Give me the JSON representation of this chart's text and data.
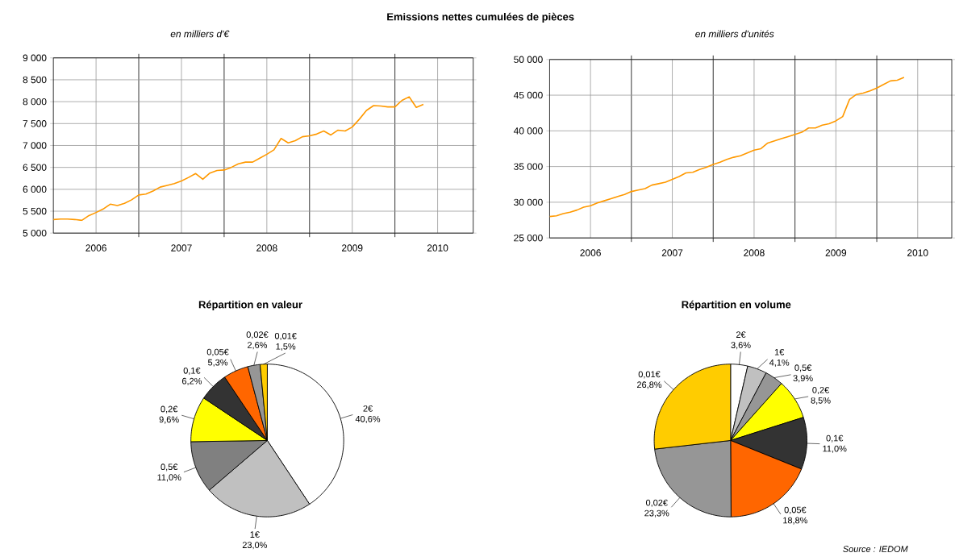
{
  "chart_data": [
    {
      "type": "line",
      "title": "Emissions nettes cumulées de pièces",
      "subtitle": "en milliers d'€",
      "grid": true,
      "x": [
        "2006-01",
        "2006-02",
        "2006-03",
        "2006-04",
        "2006-05",
        "2006-06",
        "2006-07",
        "2006-08",
        "2006-09",
        "2006-10",
        "2006-11",
        "2006-12",
        "2007-01",
        "2007-02",
        "2007-03",
        "2007-04",
        "2007-05",
        "2007-06",
        "2007-07",
        "2007-08",
        "2007-09",
        "2007-10",
        "2007-11",
        "2007-12",
        "2008-01",
        "2008-02",
        "2008-03",
        "2008-04",
        "2008-05",
        "2008-06",
        "2008-07",
        "2008-08",
        "2008-09",
        "2008-10",
        "2008-11",
        "2008-12",
        "2009-01",
        "2009-02",
        "2009-03",
        "2009-04",
        "2009-05",
        "2009-06",
        "2009-07",
        "2009-08",
        "2009-09",
        "2009-10",
        "2009-11",
        "2009-12",
        "2010-01",
        "2010-02",
        "2010-03",
        "2010-04",
        "2010-05"
      ],
      "series": [
        {
          "color": "#ff9900",
          "values": [
            5310,
            5320,
            5320,
            5310,
            5290,
            5400,
            5470,
            5550,
            5660,
            5630,
            5680,
            5760,
            5870,
            5890,
            5960,
            6050,
            6090,
            6130,
            6190,
            6270,
            6360,
            6230,
            6370,
            6430,
            6440,
            6500,
            6580,
            6620,
            6620,
            6710,
            6800,
            6900,
            7160,
            7060,
            7110,
            7200,
            7220,
            7260,
            7330,
            7240,
            7350,
            7330,
            7420,
            7600,
            7800,
            7910,
            7900,
            7880,
            7880,
            8030,
            8110,
            7870,
            7940
          ]
        }
      ],
      "xlim": [
        "2006-01",
        "2010-12"
      ],
      "xticks": [
        {
          "value": "2006-07",
          "label": "2006"
        },
        {
          "value": "2007-01",
          "label": null
        },
        {
          "value": "2007-07",
          "label": "2007"
        },
        {
          "value": "2008-01",
          "label": null
        },
        {
          "value": "2008-07",
          "label": "2008"
        },
        {
          "value": "2009-01",
          "label": null
        },
        {
          "value": "2009-07",
          "label": "2009"
        },
        {
          "value": "2010-01",
          "label": null
        },
        {
          "value": "2010-07",
          "label": "2010"
        }
      ],
      "ylim": [
        5000,
        9000
      ],
      "yticks": [
        {
          "value": 5000,
          "label": "5 000"
        },
        {
          "value": 5500,
          "label": "5 500"
        },
        {
          "value": 6000,
          "label": "6 000"
        },
        {
          "value": 6500,
          "label": "6 500"
        },
        {
          "value": 7000,
          "label": "7 000"
        },
        {
          "value": 7500,
          "label": "7 500"
        },
        {
          "value": 8000,
          "label": "8 000"
        },
        {
          "value": 8500,
          "label": "8 500"
        },
        {
          "value": 9000,
          "label": "9 000"
        }
      ]
    },
    {
      "type": "line",
      "subtitle": "en milliers d'unités",
      "grid": true,
      "x": [
        "2006-01",
        "2006-02",
        "2006-03",
        "2006-04",
        "2006-05",
        "2006-06",
        "2006-07",
        "2006-08",
        "2006-09",
        "2006-10",
        "2006-11",
        "2006-12",
        "2007-01",
        "2007-02",
        "2007-03",
        "2007-04",
        "2007-05",
        "2007-06",
        "2007-07",
        "2007-08",
        "2007-09",
        "2007-10",
        "2007-11",
        "2007-12",
        "2008-01",
        "2008-02",
        "2008-03",
        "2008-04",
        "2008-05",
        "2008-06",
        "2008-07",
        "2008-08",
        "2008-09",
        "2008-10",
        "2008-11",
        "2008-12",
        "2009-01",
        "2009-02",
        "2009-03",
        "2009-04",
        "2009-05",
        "2009-06",
        "2009-07",
        "2009-08",
        "2009-09",
        "2009-10",
        "2009-11",
        "2009-12",
        "2010-01",
        "2010-02",
        "2010-03",
        "2010-04",
        "2010-05"
      ],
      "series": [
        {
          "color": "#ff9900",
          "values": [
            28000,
            28100,
            28400,
            28600,
            28900,
            29300,
            29500,
            29900,
            30200,
            30500,
            30800,
            31100,
            31500,
            31700,
            31900,
            32400,
            32600,
            32800,
            33200,
            33600,
            34100,
            34200,
            34600,
            34900,
            35300,
            35600,
            36000,
            36300,
            36500,
            36900,
            37300,
            37500,
            38300,
            38600,
            38900,
            39200,
            39500,
            39800,
            40400,
            40400,
            40800,
            41000,
            41400,
            42000,
            44400,
            45100,
            45300,
            45600,
            46000,
            46500,
            47000,
            47100,
            47500
          ]
        }
      ],
      "xlim": [
        "2006-01",
        "2010-12"
      ],
      "xticks": [
        {
          "value": "2006-07",
          "label": "2006"
        },
        {
          "value": "2007-01",
          "label": null
        },
        {
          "value": "2007-07",
          "label": "2007"
        },
        {
          "value": "2008-01",
          "label": null
        },
        {
          "value": "2008-07",
          "label": "2008"
        },
        {
          "value": "2009-01",
          "label": null
        },
        {
          "value": "2009-07",
          "label": "2009"
        },
        {
          "value": "2010-01",
          "label": null
        },
        {
          "value": "2010-07",
          "label": "2010"
        }
      ],
      "ylim": [
        25000,
        50000
      ],
      "yticks": [
        {
          "value": 25000,
          "label": "25 000"
        },
        {
          "value": 30000,
          "label": "30 000"
        },
        {
          "value": 35000,
          "label": "35 000"
        },
        {
          "value": 40000,
          "label": "40 000"
        },
        {
          "value": 45000,
          "label": "45 000"
        },
        {
          "value": 50000,
          "label": "50 000"
        }
      ]
    },
    {
      "type": "pie",
      "title": "Répartition en valeur",
      "categories": [
        "2€",
        "1€",
        "0,5€",
        "0,2€",
        "0,1€",
        "0,05€",
        "0,02€",
        "0,01€"
      ],
      "values": [
        40.6,
        23.0,
        11.0,
        9.6,
        6.2,
        5.3,
        2.6,
        1.5
      ],
      "value_labels": [
        "40,6%",
        "23,0%",
        "11,0%",
        "9,6%",
        "6,2%",
        "5,3%",
        "2,6%",
        "1,5%"
      ],
      "colors": [
        "#ffffff",
        "#c0c0c0",
        "#808080",
        "#ffff00",
        "#333333",
        "#ff6600",
        "#969696",
        "#ffcc00"
      ]
    },
    {
      "type": "pie",
      "title": "Répartition en volume",
      "categories": [
        "2€",
        "1€",
        "0,5€",
        "0,2€",
        "0,1€",
        "0,05€",
        "0,02€",
        "0,01€"
      ],
      "values": [
        3.6,
        4.1,
        3.9,
        8.5,
        11.0,
        18.8,
        23.3,
        26.8
      ],
      "value_labels": [
        "3,6%",
        "4,1%",
        "3,9%",
        "8,5%",
        "11,0%",
        "18,8%",
        "23,3%",
        "26,8%"
      ],
      "colors": [
        "#ffffff",
        "#c0c0c0",
        "#969696",
        "#ffff00",
        "#333333",
        "#ff6600",
        "#969696",
        "#ffcc00"
      ],
      "annotations": [
        "Source : IEDOM"
      ]
    }
  ]
}
